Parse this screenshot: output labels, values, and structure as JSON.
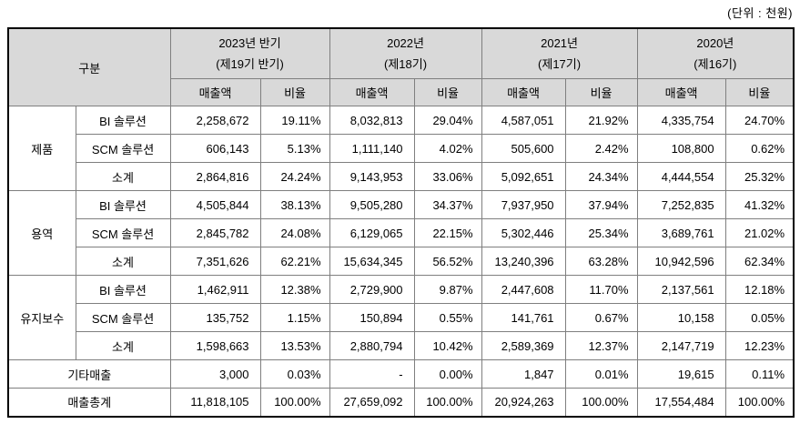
{
  "unit_label": "(단위 : 천원)",
  "colors": {
    "header_bg": "#d9d9d9",
    "grid_line": "#7f7f7f",
    "outer_border": "#000000"
  },
  "table": {
    "corner_header": "구분",
    "year_groups": [
      {
        "line1": "2023년 반기",
        "line2": "(제19기 반기)"
      },
      {
        "line1": "2022년",
        "line2": "(제18기)"
      },
      {
        "line1": "2021년",
        "line2": "(제17기)"
      },
      {
        "line1": "2020년",
        "line2": "(제16기)"
      }
    ],
    "sub_headers": {
      "sales": "매출액",
      "ratio": "비율"
    },
    "sections": [
      {
        "group": "제품",
        "rows": [
          {
            "label": "BI 솔루션",
            "values": [
              "2,258,672",
              "19.11%",
              "8,032,813",
              "29.04%",
              "4,587,051",
              "21.92%",
              "4,335,754",
              "24.70%"
            ]
          },
          {
            "label": "SCM 솔루션",
            "values": [
              "606,143",
              "5.13%",
              "1,111,140",
              "4.02%",
              "505,600",
              "2.42%",
              "108,800",
              "0.62%"
            ]
          },
          {
            "label": "소계",
            "values": [
              "2,864,816",
              "24.24%",
              "9,143,953",
              "33.06%",
              "5,092,651",
              "24.34%",
              "4,444,554",
              "25.32%"
            ]
          }
        ]
      },
      {
        "group": "용역",
        "rows": [
          {
            "label": "BI 솔루션",
            "values": [
              "4,505,844",
              "38.13%",
              "9,505,280",
              "34.37%",
              "7,937,950",
              "37.94%",
              "7,252,835",
              "41.32%"
            ]
          },
          {
            "label": "SCM 솔루션",
            "values": [
              "2,845,782",
              "24.08%",
              "6,129,065",
              "22.15%",
              "5,302,446",
              "25.34%",
              "3,689,761",
              "21.02%"
            ]
          },
          {
            "label": "소계",
            "values": [
              "7,351,626",
              "62.21%",
              "15,634,345",
              "56.52%",
              "13,240,396",
              "63.28%",
              "10,942,596",
              "62.34%"
            ]
          }
        ]
      },
      {
        "group": "유지보수",
        "rows": [
          {
            "label": "BI 솔루션",
            "values": [
              "1,462,911",
              "12.38%",
              "2,729,900",
              "9.87%",
              "2,447,608",
              "11.70%",
              "2,137,561",
              "12.18%"
            ]
          },
          {
            "label": "SCM 솔루션",
            "values": [
              "135,752",
              "1.15%",
              "150,894",
              "0.55%",
              "141,761",
              "0.67%",
              "10,158",
              "0.05%"
            ]
          },
          {
            "label": "소계",
            "values": [
              "1,598,663",
              "13.53%",
              "2,880,794",
              "10.42%",
              "2,589,369",
              "12.37%",
              "2,147,719",
              "12.23%"
            ]
          }
        ]
      }
    ],
    "summary_rows": [
      {
        "label": "기타매출",
        "values": [
          "3,000",
          "0.03%",
          "-",
          "0.00%",
          "1,847",
          "0.01%",
          "19,615",
          "0.11%"
        ]
      },
      {
        "label": "매출총계",
        "values": [
          "11,818,105",
          "100.00%",
          "27,659,092",
          "100.00%",
          "20,924,263",
          "100.00%",
          "17,554,484",
          "100.00%"
        ]
      }
    ]
  }
}
